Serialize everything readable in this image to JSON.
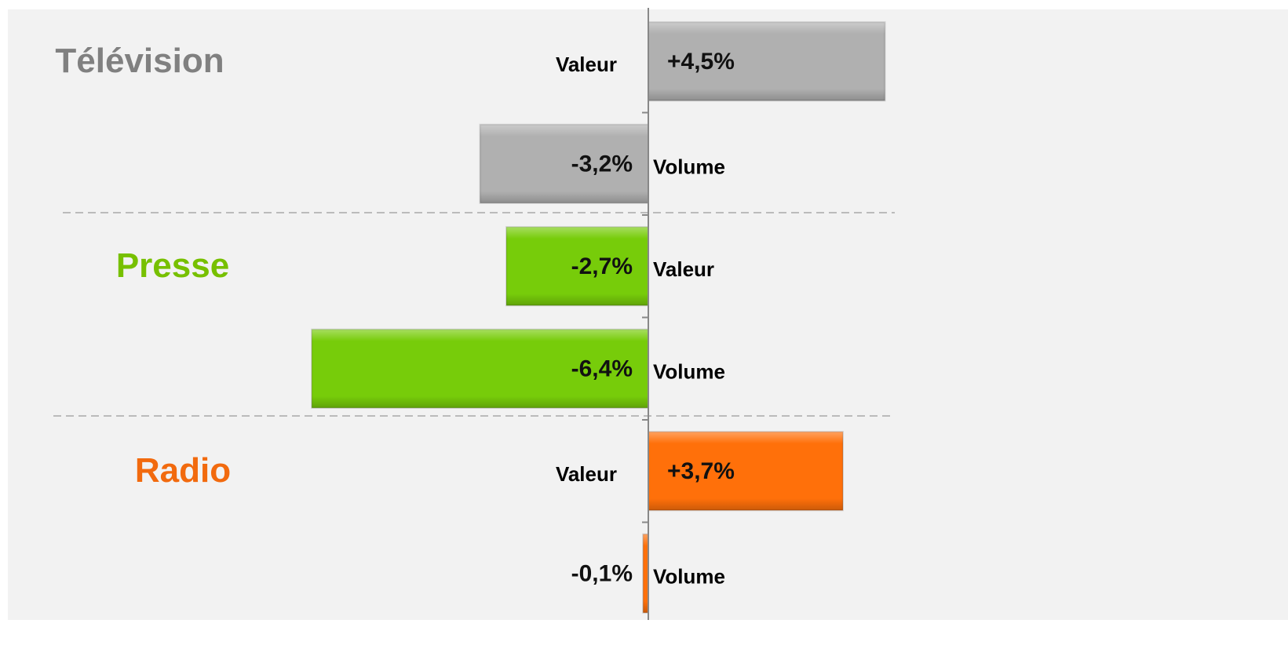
{
  "chart_data": {
    "type": "bar",
    "orientation": "horizontal",
    "categories": [
      "Valeur",
      "Volume",
      "Valeur",
      "Volume",
      "Valeur",
      "Volume"
    ],
    "values": [
      4.5,
      -3.2,
      -2.7,
      -6.4,
      3.7,
      -0.1
    ],
    "value_labels": [
      "+4,5%",
      "-3,2%",
      "-2,7%",
      "-6,4%",
      "+3,7%",
      "-0,1%"
    ],
    "groups": [
      {
        "name": "Télévision",
        "color": "#808080",
        "bar_color": "#b0b0b0"
      },
      {
        "name": "Presse",
        "color": "#77c000",
        "bar_color": "#77cc0a"
      },
      {
        "name": "Radio",
        "color": "#f26a0e",
        "bar_color": "#ff700a"
      }
    ],
    "xlim": [
      -12,
      12
    ]
  }
}
